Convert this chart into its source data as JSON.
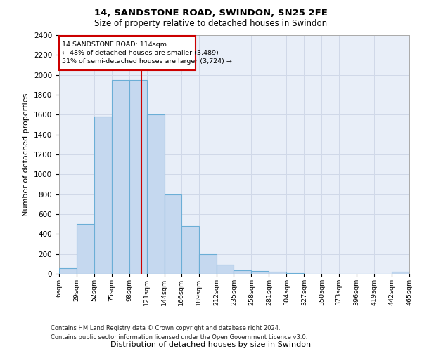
{
  "title1": "14, SANDSTONE ROAD, SWINDON, SN25 2FE",
  "title2": "Size of property relative to detached houses in Swindon",
  "xlabel": "Distribution of detached houses by size in Swindon",
  "ylabel": "Number of detached properties",
  "annotation_line1": "14 SANDSTONE ROAD: 114sqm",
  "annotation_line2": "← 48% of detached houses are smaller (3,489)",
  "annotation_line3": "51% of semi-detached houses are larger (3,724) →",
  "bin_edges": [
    6,
    29,
    52,
    75,
    98,
    121,
    144,
    166,
    189,
    212,
    235,
    258,
    281,
    304,
    327,
    350,
    373,
    396,
    419,
    442,
    465
  ],
  "bar_heights": [
    60,
    500,
    1580,
    1950,
    1950,
    1600,
    800,
    480,
    200,
    90,
    35,
    30,
    20,
    8,
    3,
    2,
    2,
    1,
    1,
    20
  ],
  "bar_color": "#c5d8ef",
  "bar_edge_color": "#6baed6",
  "vline_color": "#cc0000",
  "vline_x": 114,
  "ylim": [
    0,
    2400
  ],
  "yticks": [
    0,
    200,
    400,
    600,
    800,
    1000,
    1200,
    1400,
    1600,
    1800,
    2000,
    2200,
    2400
  ],
  "grid_color": "#d0d8e8",
  "bg_color": "#e8eef8",
  "footnote1": "Contains HM Land Registry data © Crown copyright and database right 2024.",
  "footnote2": "Contains public sector information licensed under the Open Government Licence v3.0."
}
